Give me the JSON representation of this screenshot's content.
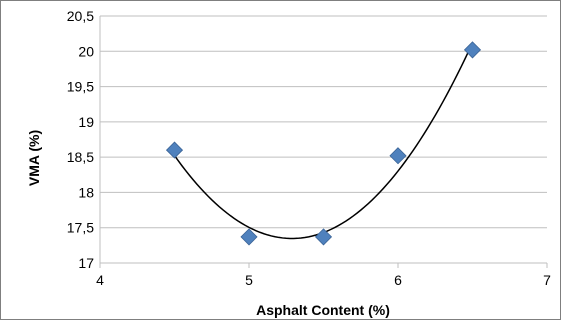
{
  "chart_data": {
    "type": "scatter",
    "title": "",
    "xlabel": "Asphalt Content (%)",
    "ylabel": "VMA (%)",
    "xlim": [
      4,
      7
    ],
    "ylim": [
      17,
      20.5
    ],
    "x_ticks": [
      "4",
      "5",
      "6",
      "7"
    ],
    "y_ticks": [
      "17",
      "17,5",
      "18",
      "18,5",
      "19",
      "19,5",
      "20",
      "20,5"
    ],
    "grid": "horizontal",
    "legend": "none",
    "marker": "diamond",
    "marker_color": "#4f81bd",
    "trendline": "polynomial",
    "trendline_color": "#000000",
    "grid_color": "#bfbfbf",
    "series": [
      {
        "x": [
          4.5,
          5.0,
          5.5,
          6.0,
          6.5
        ],
        "y": [
          18.6,
          17.37,
          17.37,
          18.52,
          20.02
        ]
      }
    ]
  }
}
